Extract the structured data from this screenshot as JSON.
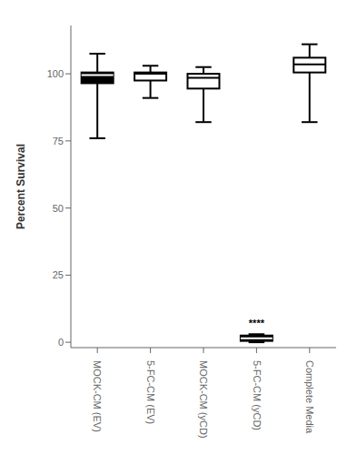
{
  "chart_data": {
    "type": "box",
    "categories": [
      "MOCK-CM (EV)",
      "5-FC-CM (EV)",
      "MOCK-CM (yCD)",
      "5-FC-CM (yCD)",
      "Complete Media"
    ],
    "boxes": [
      {
        "whislo": 76.0,
        "q1": 96.5,
        "median": 99.5,
        "q3": 100.5,
        "whishi": 107.5
      },
      {
        "whislo": 91.0,
        "q1": 97.5,
        "median": 100.0,
        "q3": 100.5,
        "whishi": 103.0
      },
      {
        "whislo": 82.0,
        "q1": 94.5,
        "median": 98.5,
        "q3": 100.0,
        "whishi": 102.5
      },
      {
        "whislo": 0.0,
        "q1": 0.5,
        "median": 1.5,
        "q3": 2.5,
        "whishi": 3.0
      },
      {
        "whislo": 82.0,
        "q1": 100.5,
        "median": 103.5,
        "q3": 106.0,
        "whishi": 111.0
      }
    ],
    "colors": [
      "#000000",
      "#ffffff",
      "#ffffff",
      "#000000",
      "#ffffff"
    ],
    "ylabel": "Percent Survival",
    "ylim": [
      -2,
      118
    ],
    "yticks": [
      0,
      25,
      50,
      75,
      100
    ],
    "annotations": [
      {
        "x": "5-FC-CM (yCD)",
        "y": 4.0,
        "text": "****"
      }
    ],
    "grid": false
  }
}
